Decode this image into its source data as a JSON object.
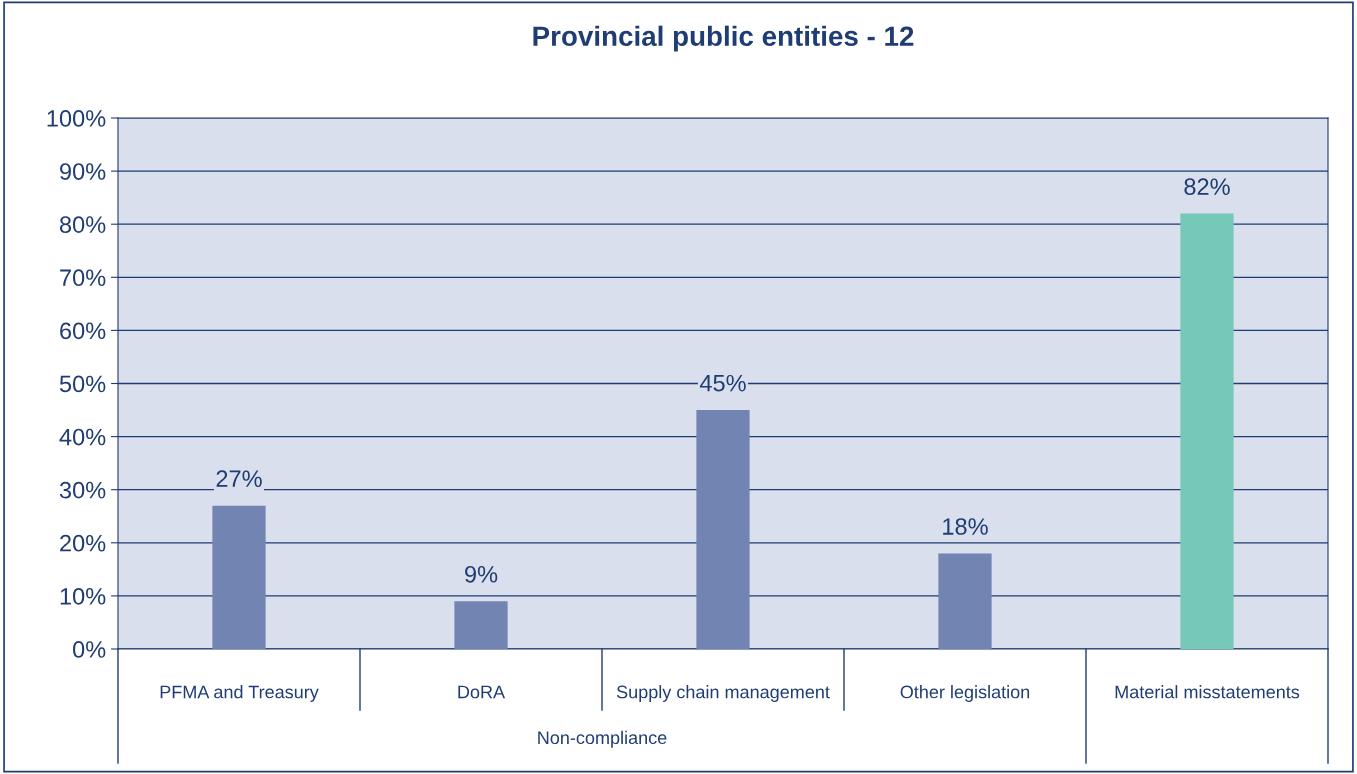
{
  "chart_data": {
    "type": "bar",
    "title": "Provincial public entities - 12",
    "categories": [
      "PFMA and Treasury",
      "DoRA",
      "Supply chain management",
      "Other legislation",
      "Material misstatements"
    ],
    "values": [
      27,
      9,
      45,
      18,
      82
    ],
    "colors": [
      "#7284b1",
      "#7284b1",
      "#7284b1",
      "#7284b1",
      "#76c8b8"
    ],
    "ylim": [
      0,
      100
    ],
    "yticks": [
      {
        "value": 0,
        "label": "0%"
      },
      {
        "value": 10,
        "label": "10%"
      },
      {
        "value": 20,
        "label": "20%"
      },
      {
        "value": 30,
        "label": "30%"
      },
      {
        "value": 40,
        "label": "40%"
      },
      {
        "value": 50,
        "label": "50%"
      },
      {
        "value": 60,
        "label": "60%"
      },
      {
        "value": 70,
        "label": "70%"
      },
      {
        "value": 80,
        "label": "80%"
      },
      {
        "value": 90,
        "label": "90%"
      },
      {
        "value": 100,
        "label": "100%"
      }
    ],
    "value_labels": [
      "27%",
      "9%",
      "45%",
      "18%",
      "82%"
    ],
    "annotations": [
      "Non-compliance"
    ],
    "grid": "y",
    "legend": false
  }
}
